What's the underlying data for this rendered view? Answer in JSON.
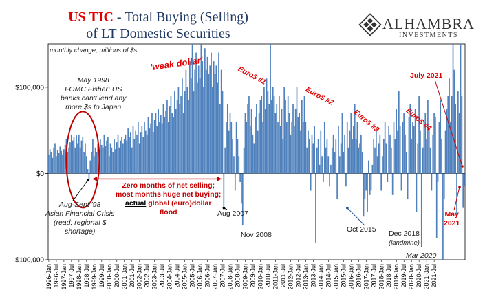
{
  "header": {
    "title_red": "US TIC",
    "title_rest": " - Total Buying (Selling)",
    "title_line2": "of LT Domestic Securities",
    "logo_name": "ALHAMBRA",
    "logo_sub": "INVESTMENTS"
  },
  "units_note": "monthly change, millions of $s",
  "annotations": {
    "weak_dollar": "'weak dollar'",
    "euro1": "Euro$ #1",
    "euro2": "Euro$ #2",
    "euro3": "Euro$ #3",
    "euro4": "Euro$ #4",
    "may1998_l1": "May  1998",
    "may1998_l2": "FOMC Fisher: US",
    "may1998_l3": "banks can't lend any",
    "may1998_l4": "more $s to Japan",
    "aug98_l1": "Aug-Sept '98",
    "aug98_l2": "Asian Financial Crisis",
    "aug98_l3": "(read: regional $",
    "aug98_l4": "shortage)",
    "zero_l1": "Zero months of net selling;",
    "zero_l2": "most months huge net buying;",
    "zero_l3_u": "actual",
    "zero_l3_rest": " global (euro)dollar",
    "zero_l4": "flood",
    "aug2007": "Aug 2007",
    "nov2008": "Nov 2008",
    "oct2015": "Oct 2015",
    "dec2018_l1": "Dec 2018",
    "dec2018_l2": "(landmine)",
    "mar2020": "Mar 2020",
    "july2021": "July 2021",
    "may2021_l1": "May",
    "may2021_l2": "2021"
  },
  "colors": {
    "bar": "#4f81bd",
    "accent_red": "#e00000",
    "title_navy": "#1f3864"
  },
  "chart_data": {
    "type": "bar",
    "title": "US TIC - Total Buying (Selling) of LT Domestic Securities",
    "ylabel": "monthly change, millions of $s",
    "ylim": [
      -100000,
      150000
    ],
    "yticks": [
      {
        "value": 100000,
        "label": "$100,000"
      },
      {
        "value": 0,
        "label": "$0"
      },
      {
        "value": -100000,
        "label": "-$100,000"
      }
    ],
    "x_start": "1996-Jan",
    "frequency": "monthly",
    "x_tick_labels": [
      "1996-Jan",
      "1996-Jul",
      "1997-Jan",
      "1997-Jul",
      "1998-Jan",
      "1998-Jul",
      "1999-Jan",
      "1999-Jul",
      "2000-Jan",
      "2000-Jul",
      "2001-Jan",
      "2001-Jul",
      "2002-Jan",
      "2002-Jul",
      "2003-Jan",
      "2003-Jul",
      "2004-Jan",
      "2004-Jul",
      "2005-Jan",
      "2005-Jul",
      "2006-Jan",
      "2006-Jul",
      "2007-Jan",
      "2007-Jul",
      "2008-Jan",
      "2008-Jul",
      "2009-Jan",
      "2009-Jul",
      "2010-Jan",
      "2010-Jul",
      "2011-Jan",
      "2011-Jul",
      "2012-Jan",
      "2012-Jul",
      "2013-Jan",
      "2013-Jul",
      "2014-Jan",
      "2014-Jul",
      "2015-Jan",
      "2015-Jul",
      "2016-Jan",
      "2016-Jul",
      "2017-Jan",
      "2017-Jul",
      "2018-Jan",
      "2018-Jul",
      "2019-Jan",
      "2019-Jul",
      "2020-Jan",
      "2020-Jul",
      "2021-Jan",
      "2021-Jul"
    ],
    "values": [
      22000,
      28000,
      25000,
      18000,
      30000,
      35000,
      20000,
      27000,
      24000,
      31000,
      26000,
      22000,
      28000,
      33000,
      40000,
      25000,
      30000,
      36000,
      45000,
      38000,
      42000,
      30000,
      44000,
      35000,
      45000,
      30000,
      38000,
      42000,
      25000,
      35000,
      20000,
      5000,
      -8000,
      15000,
      25000,
      40000,
      20000,
      30000,
      25000,
      35000,
      28000,
      40000,
      33000,
      30000,
      45000,
      32000,
      38000,
      42000,
      20000,
      35000,
      30000,
      25000,
      40000,
      28000,
      36000,
      45000,
      30000,
      38000,
      42000,
      35000,
      40000,
      45000,
      38000,
      52000,
      42000,
      48000,
      30000,
      55000,
      40000,
      50000,
      45000,
      60000,
      35000,
      48000,
      55000,
      42000,
      60000,
      50000,
      45000,
      65000,
      52000,
      58000,
      70000,
      48000,
      62000,
      70000,
      55000,
      75000,
      60000,
      68000,
      58000,
      80000,
      65000,
      72000,
      85000,
      60000,
      78000,
      90000,
      70000,
      65000,
      95000,
      75000,
      85000,
      100000,
      80000,
      90000,
      110000,
      70000,
      95000,
      120000,
      100000,
      85000,
      130000,
      110000,
      150000,
      95000,
      120000,
      140000,
      105000,
      125000,
      110000,
      150000,
      130000,
      100000,
      145000,
      120000,
      135000,
      115000,
      125000,
      140000,
      100000,
      130000,
      115000,
      125000,
      105000,
      140000,
      80000,
      120000,
      95000,
      -40000,
      30000,
      60000,
      80000,
      50000,
      70000,
      60000,
      40000,
      20000,
      -20000,
      60000,
      40000,
      20000,
      -10000,
      -35000,
      -60000,
      30000,
      70000,
      60000,
      80000,
      90000,
      55000,
      75000,
      45000,
      35000,
      65000,
      80000,
      50000,
      70000,
      85000,
      90000,
      60000,
      100000,
      75000,
      110000,
      95000,
      80000,
      150000,
      85000,
      100000,
      90000,
      70000,
      80000,
      60000,
      90000,
      55000,
      75000,
      40000,
      100000,
      85000,
      60000,
      90000,
      70000,
      45000,
      60000,
      80000,
      55000,
      75000,
      100000,
      65000,
      70000,
      50000,
      85000,
      60000,
      90000,
      60000,
      30000,
      50000,
      40000,
      -20000,
      45000,
      35000,
      55000,
      -80000,
      30000,
      40000,
      10000,
      50000,
      20000,
      -10000,
      60000,
      30000,
      40000,
      20000,
      -15000,
      10000,
      30000,
      45000,
      25000,
      40000,
      -30000,
      55000,
      20000,
      35000,
      70000,
      25000,
      45000,
      -15000,
      60000,
      30000,
      50000,
      70000,
      40000,
      55000,
      80000,
      40000,
      60000,
      30000,
      35000,
      45000,
      25000,
      -50000,
      -30000,
      -20000,
      -45000,
      15000,
      -25000,
      -20000,
      10000,
      40000,
      30000,
      50000,
      20000,
      35000,
      45000,
      -20000,
      20000,
      40000,
      60000,
      35000,
      -10000,
      55000,
      45000,
      30000,
      -25000,
      60000,
      40000,
      75000,
      50000,
      95000,
      55000,
      -20000,
      60000,
      70000,
      45000,
      25000,
      -30000,
      65000,
      80000,
      40000,
      60000,
      55000,
      75000,
      -45000,
      35000,
      90000,
      50000,
      -85000,
      30000,
      60000,
      70000,
      40000,
      85000,
      50000,
      30000,
      -20000,
      45000,
      70000,
      65000,
      -75000,
      -10000,
      60000,
      85000,
      40000,
      -100000,
      -30000,
      50000,
      75000,
      90000,
      110000,
      60000,
      90000,
      150000,
      120000,
      80000,
      -50000,
      95000,
      70000,
      150000,
      90000,
      -40000,
      -15000
    ]
  }
}
